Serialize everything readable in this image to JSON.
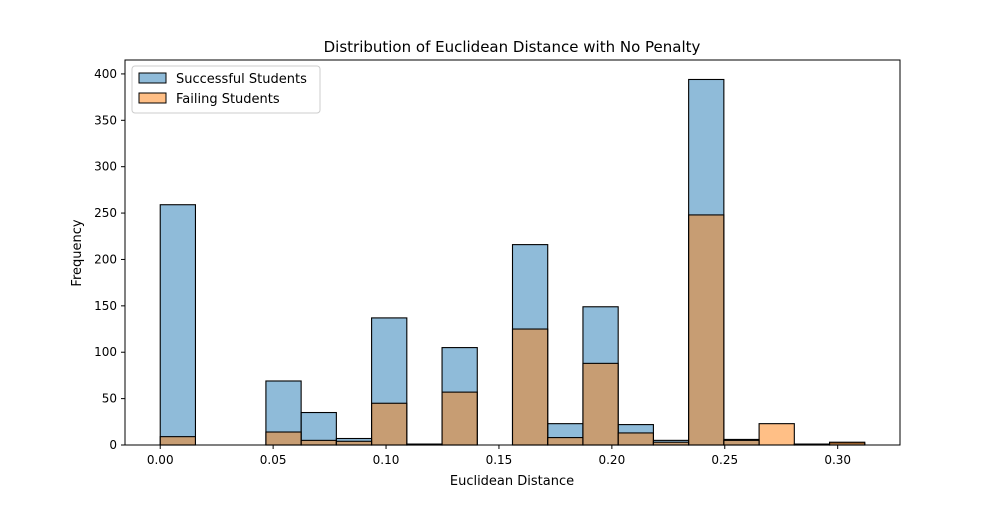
{
  "chart_data": {
    "type": "bar",
    "title": "Distribution of Euclidean Distance with No Penalty",
    "xlabel": "Euclidean Distance",
    "ylabel": "Frequency",
    "xlim": [
      -0.0156,
      0.3276
    ],
    "ylim": [
      0,
      415
    ],
    "xticks": [
      0.0,
      0.05,
      0.1,
      0.15,
      0.2,
      0.25,
      0.3
    ],
    "xtick_labels": [
      "0.00",
      "0.05",
      "0.10",
      "0.15",
      "0.20",
      "0.25",
      "0.30"
    ],
    "yticks": [
      0,
      50,
      100,
      150,
      200,
      250,
      300,
      350,
      400
    ],
    "ytick_labels": [
      "0",
      "50",
      "100",
      "150",
      "200",
      "250",
      "300",
      "350",
      "400"
    ],
    "grid": false,
    "legend_position": "top-left",
    "bin_width": 0.0156,
    "bin_starts": [
      0.0,
      0.0156,
      0.0312,
      0.0468,
      0.0624,
      0.078,
      0.0936,
      0.1092,
      0.1248,
      0.1404,
      0.156,
      0.1716,
      0.1872,
      0.2028,
      0.2184,
      0.234,
      0.2496,
      0.2652,
      0.2808,
      0.2964
    ],
    "series": [
      {
        "name": "Successful Students",
        "color": "#1f77b4",
        "fill_opacity": 0.5,
        "values": [
          259,
          0,
          0,
          69,
          35,
          7,
          137,
          1,
          105,
          0,
          216,
          23,
          149,
          22,
          5,
          394,
          6,
          0,
          1,
          2
        ]
      },
      {
        "name": "Failing Students",
        "color": "#ff7f0e",
        "fill_opacity": 0.5,
        "values": [
          9,
          0,
          0,
          14,
          5,
          4,
          45,
          1,
          57,
          0,
          125,
          8,
          88,
          13,
          3,
          248,
          5,
          23,
          1,
          3
        ]
      }
    ]
  }
}
